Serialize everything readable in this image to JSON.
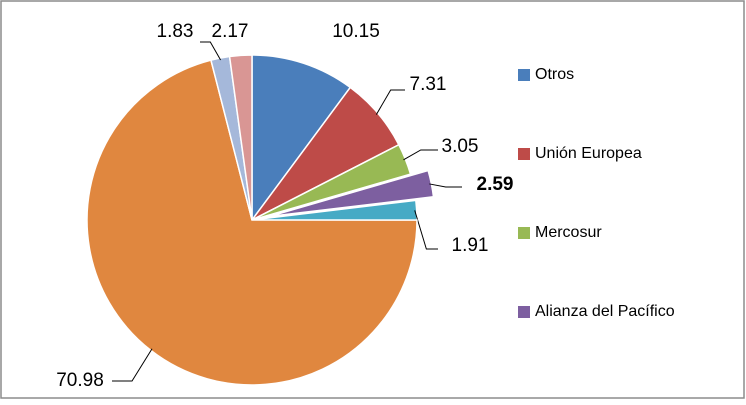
{
  "chart_data": {
    "type": "pie",
    "categories": [
      "Otros",
      "Unión Europea",
      "Mercosur",
      "Alianza del Pacífico",
      null,
      null,
      null,
      null
    ],
    "values": [
      10.15,
      7.31,
      3.05,
      2.59,
      1.91,
      70.98,
      1.83,
      2.17
    ],
    "colors": [
      "#4a7ebb",
      "#be4b48",
      "#98b954",
      "#7d5fa0",
      "#46aac5",
      "#e0873f",
      "#a5b8da",
      "#d99694"
    ]
  }
}
